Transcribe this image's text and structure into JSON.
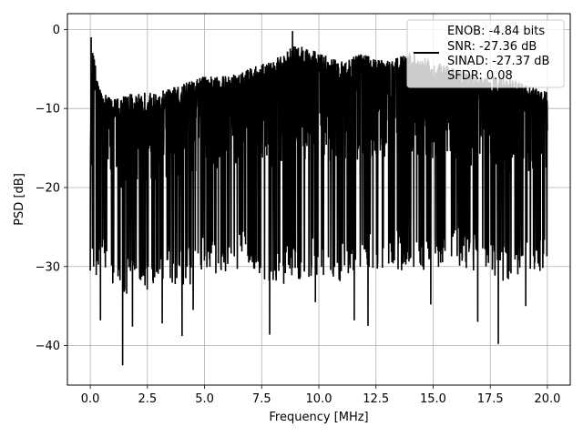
{
  "chart_data": {
    "type": "line",
    "xlabel": "Frequency [MHz]",
    "ylabel": "PSD [dB]",
    "xlim": [
      -1,
      21
    ],
    "ylim": [
      -45,
      2
    ],
    "xticks": [
      0,
      2.5,
      5,
      7.5,
      10,
      12.5,
      15,
      17.5,
      20
    ],
    "xtick_labels": [
      "0.0",
      "2.5",
      "5.0",
      "7.5",
      "10.0",
      "12.5",
      "15.0",
      "17.5",
      "20.0"
    ],
    "yticks": [
      0,
      -10,
      -20,
      -30,
      -40
    ],
    "ytick_labels": [
      "0",
      "−10",
      "−20",
      "−30",
      "−40"
    ],
    "grid": true,
    "legend_position": "top-right",
    "legend_lines": [
      "ENOB: -4.84 bits",
      "SNR: -27.36 dB",
      "SINAD: -27.37 dB",
      "SFDR: 0.08"
    ],
    "series": [
      {
        "color": "#000000",
        "x_range": [
          0,
          20
        ],
        "profile": {
          "x": [
            0,
            0.1,
            0.3,
            0.5,
            1,
            2,
            3,
            4,
            5,
            6,
            7,
            8,
            9,
            10,
            11,
            12,
            13,
            14,
            15,
            16,
            17,
            18,
            19,
            20
          ],
          "upper": [
            -12,
            -1,
            -5,
            -7,
            -8,
            -7,
            -7,
            -6,
            -5,
            -5,
            -4,
            -3,
            -1,
            -2,
            -3,
            -2,
            -3,
            -2,
            -3,
            -4,
            -5,
            -5,
            -6,
            -7
          ],
          "lower": [
            -33,
            -30,
            -32,
            -30,
            -33,
            -34,
            -32,
            -33,
            -31,
            -31,
            -30,
            -33,
            -32,
            -31,
            -32,
            -31,
            -30,
            -31,
            -31,
            -30,
            -31,
            -32,
            -31,
            -31
          ]
        },
        "spikes": [
          {
            "x": 0.04,
            "y": -1
          },
          {
            "x": 0.45,
            "y": -36.8
          },
          {
            "x": 1.42,
            "y": -42.5
          },
          {
            "x": 1.85,
            "y": -37.6
          },
          {
            "x": 3.15,
            "y": -37.2
          },
          {
            "x": 4.02,
            "y": -38.8
          },
          {
            "x": 4.5,
            "y": -35.5
          },
          {
            "x": 7.85,
            "y": -38.6
          },
          {
            "x": 8.85,
            "y": -0.2
          },
          {
            "x": 9.85,
            "y": -34.5
          },
          {
            "x": 11.55,
            "y": -36.8
          },
          {
            "x": 12.15,
            "y": -37.5
          },
          {
            "x": 14.9,
            "y": -34.8
          },
          {
            "x": 16.95,
            "y": -37.0
          },
          {
            "x": 17.85,
            "y": -39.8
          },
          {
            "x": 19.05,
            "y": -35.0
          }
        ]
      }
    ]
  }
}
